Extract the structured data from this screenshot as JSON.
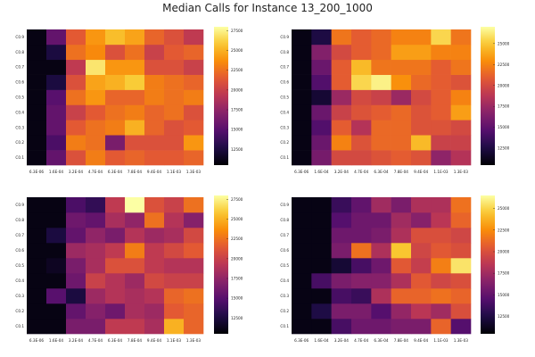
{
  "chart_data": {
    "type": "heatmap",
    "title": "Median Calls for Instance 13_200_1000",
    "x_categories": [
      "6.3E-06",
      "1.6E-04",
      "3.2E-04",
      "4.7E-04",
      "6.3E-04",
      "7.8E-04",
      "9.4E-04",
      "1.1E-03",
      "1.3E-03"
    ],
    "y_categories": [
      "C0.1",
      "C0.2",
      "C0.3",
      "C0.4",
      "C0.5",
      "C0.6",
      "C0.7",
      "C0.8",
      "C0.9"
    ],
    "colormap": "inferno",
    "panels": [
      {
        "name": "top-left",
        "zlim": [
          10500,
          28000
        ],
        "colorbar_ticks": [
          12500,
          15000,
          17500,
          20000,
          22500,
          25000,
          27500
        ],
        "values": [
          [
            11000,
            15500,
            21000,
            23000,
            21500,
            22000,
            21500,
            21500,
            22000
          ],
          [
            11000,
            14500,
            23000,
            22500,
            16500,
            21000,
            21000,
            21000,
            24000
          ],
          [
            11000,
            15500,
            21500,
            22500,
            23000,
            25000,
            22000,
            21000,
            21500
          ],
          [
            11000,
            15500,
            20000,
            21500,
            22500,
            23000,
            22000,
            22500,
            21000
          ],
          [
            11000,
            15000,
            22500,
            24000,
            22000,
            22000,
            23000,
            22500,
            23000
          ],
          [
            11000,
            12500,
            21000,
            24500,
            25000,
            26000,
            23000,
            22500,
            22000
          ],
          [
            11000,
            11000,
            19500,
            27000,
            24000,
            24000,
            21000,
            21000,
            20000
          ],
          [
            11000,
            12500,
            22500,
            23500,
            21000,
            22500,
            20000,
            21500,
            22000
          ],
          [
            11000,
            15500,
            21500,
            24000,
            25500,
            24500,
            22000,
            21000,
            19500
          ]
        ]
      },
      {
        "name": "top-right",
        "zlim": [
          10500,
          27000
        ],
        "colorbar_ticks": [
          12500,
          15000,
          17500,
          20000,
          22500,
          25000
        ],
        "values": [
          [
            11000,
            16000,
            20000,
            20000,
            20500,
            21000,
            20500,
            17000,
            18500
          ],
          [
            11000,
            15500,
            22500,
            20500,
            21500,
            21500,
            24500,
            19500,
            19500
          ],
          [
            11000,
            14500,
            21000,
            18500,
            21500,
            21500,
            20500,
            20500,
            20000
          ],
          [
            11000,
            15500,
            19500,
            20500,
            21000,
            21500,
            20500,
            21000,
            23500
          ],
          [
            11000,
            12000,
            17500,
            20000,
            19500,
            17500,
            20000,
            21000,
            22500
          ],
          [
            11000,
            14500,
            21000,
            25500,
            26500,
            23000,
            21500,
            21000,
            20500
          ],
          [
            11000,
            15500,
            21000,
            24500,
            22000,
            22000,
            22000,
            21000,
            22000
          ],
          [
            11000,
            16500,
            20000,
            21000,
            21500,
            23500,
            23500,
            22500,
            22500
          ],
          [
            11000,
            12500,
            22000,
            21000,
            21500,
            22500,
            22500,
            25500,
            22000
          ]
        ]
      },
      {
        "name": "bottom-left",
        "zlim": [
          10500,
          28000
        ],
        "colorbar_ticks": [
          12500,
          15000,
          17500,
          20000,
          22500,
          25000,
          27500
        ],
        "values": [
          [
            11000,
            11000,
            16500,
            16500,
            19500,
            19500,
            18500,
            25000,
            22000
          ],
          [
            11000,
            11000,
            15500,
            17000,
            16000,
            18500,
            18000,
            21500,
            22000
          ],
          [
            11000,
            15000,
            12500,
            18000,
            19000,
            18500,
            19000,
            22000,
            22500
          ],
          [
            11000,
            11000,
            16000,
            20000,
            19000,
            18000,
            20500,
            20000,
            20000
          ],
          [
            11000,
            11500,
            16500,
            18500,
            21000,
            21000,
            19500,
            19000,
            19000
          ],
          [
            11000,
            11000,
            18000,
            18500,
            19500,
            23000,
            19500,
            20500,
            21500
          ],
          [
            11000,
            12500,
            15500,
            17500,
            16500,
            19000,
            18000,
            18500,
            20500
          ],
          [
            11000,
            11000,
            16000,
            15500,
            18500,
            17500,
            22500,
            19000,
            17000
          ],
          [
            11000,
            11000,
            14500,
            13500,
            19500,
            28000,
            21000,
            20000,
            22500
          ]
        ]
      },
      {
        "name": "bottom-right",
        "zlim": [
          10500,
          26500
        ],
        "colorbar_ticks": [
          12500,
          15000,
          17500,
          20000,
          22500,
          25000
        ],
        "values": [
          [
            11000,
            11000,
            14000,
            15500,
            15500,
            16000,
            16000,
            21000,
            14500
          ],
          [
            11000,
            12500,
            16000,
            16000,
            14500,
            17000,
            18500,
            17500,
            20000
          ],
          [
            11000,
            11000,
            14000,
            13500,
            18000,
            21000,
            21000,
            21500,
            21000
          ],
          [
            11000,
            14000,
            16000,
            16500,
            16500,
            18000,
            20500,
            19500,
            20000
          ],
          [
            11000,
            11000,
            12000,
            14000,
            15500,
            20500,
            19000,
            22000,
            25500
          ],
          [
            11000,
            11000,
            16000,
            21500,
            18000,
            24500,
            19500,
            20500,
            20000
          ],
          [
            11000,
            11000,
            15500,
            15500,
            16000,
            18000,
            20000,
            20000,
            19500
          ],
          [
            11000,
            11000,
            14500,
            15500,
            15500,
            17500,
            16500,
            18500,
            21000
          ],
          [
            11000,
            11000,
            13500,
            15000,
            17500,
            16000,
            18000,
            18000,
            21500
          ]
        ]
      }
    ]
  }
}
